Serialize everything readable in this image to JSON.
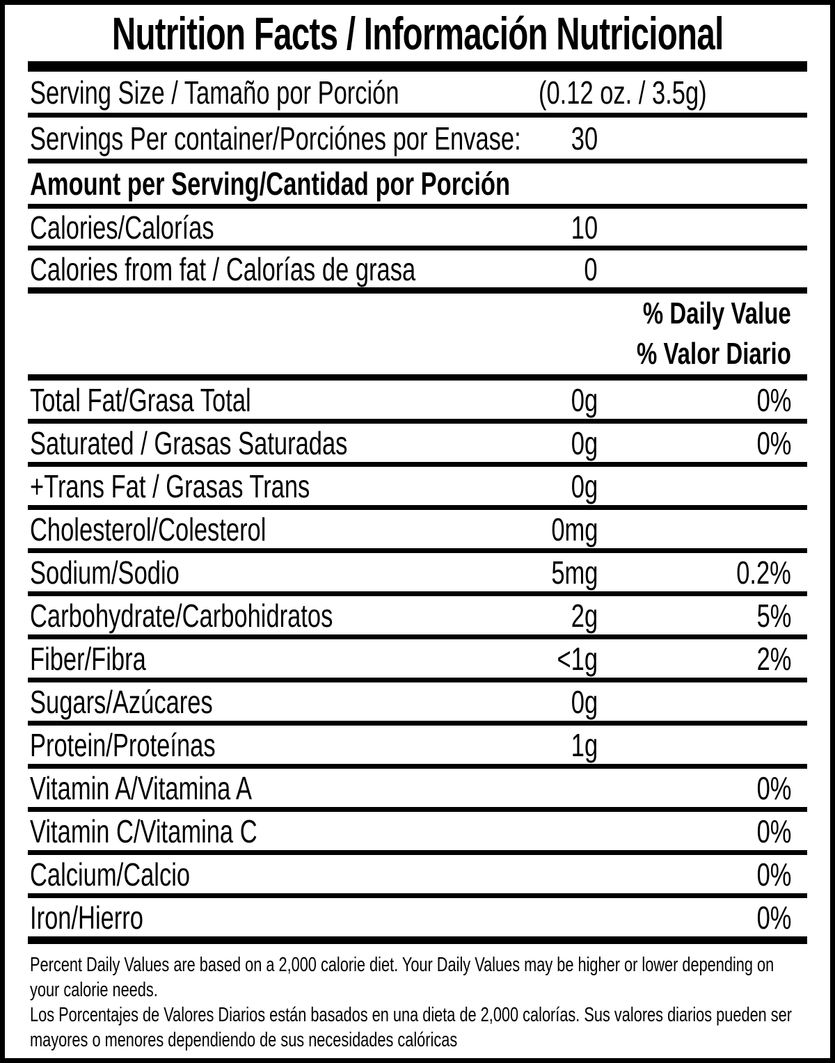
{
  "label": {
    "title": "Nutrition Facts / Información Nutricional",
    "serving_size": {
      "label": "Serving Size / Tamaño por Porción",
      "value": "(0.12 oz. / 3.5g)"
    },
    "servings_per_container": {
      "label": "Servings Per container/Porciónes por Envase:",
      "value": "30"
    },
    "amount_per_serving_header": "Amount per Serving/Cantidad por Porción",
    "calories": {
      "label": "Calories/Calorías",
      "value": "10"
    },
    "calories_from_fat": {
      "label": "Calories from fat / Calorías de grasa",
      "value": "0"
    },
    "daily_value_header_en": "% Daily Value",
    "daily_value_header_es": "% Valor Diario",
    "nutrients": [
      {
        "label": "Total Fat/Grasa Total",
        "amount": "0g",
        "dv": "0%"
      },
      {
        "label": "Saturated / Grasas Saturadas",
        "amount": "0g",
        "dv": "0%"
      },
      {
        "label": "+Trans Fat / Grasas Trans",
        "amount": "0g",
        "dv": ""
      },
      {
        "label": "Cholesterol/Colesterol",
        "amount": "0mg",
        "dv": ""
      },
      {
        "label": "Sodium/Sodio",
        "amount": "5mg",
        "dv": "0.2%"
      },
      {
        "label": "Carbohydrate/Carbohidratos",
        "amount": "2g",
        "dv": "5%"
      },
      {
        "label": "Fiber/Fibra",
        "amount": "<1g",
        "dv": "2%"
      },
      {
        "label": "Sugars/Azúcares",
        "amount": "0g",
        "dv": ""
      },
      {
        "label": "Protein/Proteínas",
        "amount": "1g",
        "dv": ""
      },
      {
        "label": "Vitamin A/Vitamina A",
        "amount": "",
        "dv": "0%"
      },
      {
        "label": "Vitamin C/Vitamina C",
        "amount": "",
        "dv": "0%"
      },
      {
        "label": "Calcium/Calcio",
        "amount": "",
        "dv": "0%"
      },
      {
        "label": "Iron/Hierro",
        "amount": "",
        "dv": "0%"
      }
    ],
    "footnote_en": "Percent Daily Values are based on a 2,000 calorie diet. Your Daily Values may be higher or lower depending on your calorie needs.",
    "footnote_es": "Los Porcentajes de Valores Diarios están basados en una dieta de 2,000 calorías. Sus valores diarios pueden ser mayores o menores dependiendo de sus necesidades calóricas",
    "colors": {
      "text": "#000000",
      "background": "#ffffff",
      "border": "#000000"
    }
  }
}
